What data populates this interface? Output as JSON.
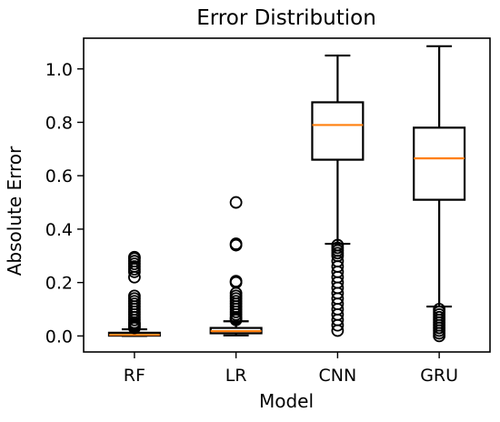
{
  "chart_data": {
    "type": "box",
    "title": "Error Distribution",
    "xlabel": "Model",
    "ylabel": "Absolute Error",
    "ylim": [
      -0.06,
      1.115
    ],
    "yticks": [
      0.0,
      0.2,
      0.4,
      0.6,
      0.8,
      1.0
    ],
    "ytick_labels": [
      "0.0",
      "0.2",
      "0.4",
      "0.6",
      "0.8",
      "1.0"
    ],
    "grid": false,
    "legend": "none",
    "colors": {
      "box": "#000000",
      "median": "#ff7f0e",
      "background": "#ffffff"
    },
    "categories": [
      "RF",
      "LR",
      "CNN",
      "GRU"
    ],
    "boxes": [
      {
        "category": "RF",
        "whisker_low": 0.0,
        "q1": 0.001,
        "median": 0.004,
        "q3": 0.012,
        "whisker_high": 0.025,
        "outliers": [
          0.03,
          0.035,
          0.04,
          0.045,
          0.05,
          0.06,
          0.07,
          0.08,
          0.09,
          0.1,
          0.11,
          0.12,
          0.13,
          0.14,
          0.15,
          0.22,
          0.24,
          0.25,
          0.26,
          0.27,
          0.28,
          0.29,
          0.295
        ]
      },
      {
        "category": "LR",
        "whisker_low": 0.002,
        "q1": 0.01,
        "median": 0.018,
        "q3": 0.03,
        "whisker_high": 0.055,
        "outliers": [
          0.06,
          0.065,
          0.07,
          0.08,
          0.09,
          0.1,
          0.11,
          0.12,
          0.13,
          0.14,
          0.15,
          0.16,
          0.2,
          0.205,
          0.34,
          0.345,
          0.5
        ]
      },
      {
        "category": "CNN",
        "whisker_low": 0.345,
        "q1": 0.66,
        "median": 0.79,
        "q3": 0.875,
        "whisker_high": 1.05,
        "outliers": [
          0.02,
          0.04,
          0.06,
          0.08,
          0.1,
          0.12,
          0.14,
          0.16,
          0.18,
          0.2,
          0.22,
          0.24,
          0.26,
          0.28,
          0.3,
          0.31,
          0.32,
          0.33,
          0.34
        ]
      },
      {
        "category": "GRU",
        "whisker_low": 0.11,
        "q1": 0.51,
        "median": 0.665,
        "q3": 0.78,
        "whisker_high": 1.085,
        "outliers": [
          0.0,
          0.01,
          0.02,
          0.03,
          0.04,
          0.05,
          0.06,
          0.07,
          0.08,
          0.09,
          0.1
        ]
      }
    ]
  }
}
